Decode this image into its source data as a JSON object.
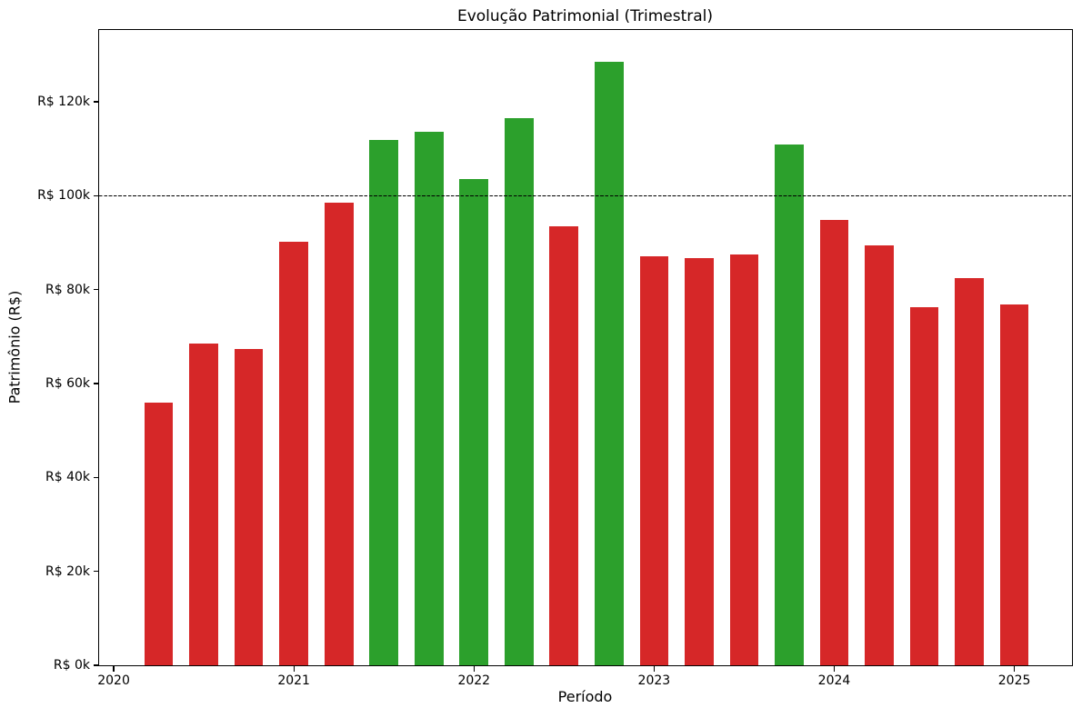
{
  "chart_data": {
    "type": "bar",
    "title": "Evolução Patrimonial (Trimestral)",
    "xlabel": "Período",
    "ylabel": "Patrimônio (R$)",
    "values_unit": "R$ thousands",
    "categories": [
      "2020Q1",
      "2020Q2",
      "2020Q3",
      "2020Q4",
      "2021Q1",
      "2021Q2",
      "2021Q3",
      "2021Q4",
      "2022Q1",
      "2022Q2",
      "2022Q3",
      "2022Q4",
      "2023Q1",
      "2023Q2",
      "2023Q3",
      "2023Q4",
      "2024Q1",
      "2024Q2",
      "2024Q3",
      "2024Q4"
    ],
    "x": [
      2020.25,
      2020.5,
      2020.75,
      2021.0,
      2021.25,
      2021.5,
      2021.75,
      2022.0,
      2022.25,
      2022.5,
      2022.75,
      2023.0,
      2023.25,
      2023.5,
      2023.75,
      2024.0,
      2024.25,
      2024.5,
      2024.75,
      2025.0
    ],
    "values": [
      55.9,
      68.5,
      67.4,
      90.2,
      98.5,
      111.9,
      113.7,
      103.6,
      116.6,
      93.5,
      128.5,
      87.2,
      86.8,
      87.5,
      110.9,
      94.9,
      89.5,
      76.3,
      82.4,
      76.9
    ],
    "bar_colors": [
      "#d62728",
      "#d62728",
      "#d62728",
      "#d62728",
      "#d62728",
      "#2ca02c",
      "#2ca02c",
      "#2ca02c",
      "#2ca02c",
      "#d62728",
      "#2ca02c",
      "#d62728",
      "#d62728",
      "#d62728",
      "#2ca02c",
      "#d62728",
      "#d62728",
      "#d62728",
      "#d62728",
      "#d62728"
    ],
    "color_rule": {
      "above_threshold": "#2ca02c",
      "below_threshold": "#d62728"
    },
    "threshold": {
      "value": 100,
      "color": "#000000",
      "style": "dashed"
    },
    "xlim": [
      2019.919,
      2025.32
    ],
    "ylim": [
      0,
      135.3
    ],
    "xticks": [
      {
        "value": 2020,
        "label": "2020"
      },
      {
        "value": 2021,
        "label": "2021"
      },
      {
        "value": 2022,
        "label": "2022"
      },
      {
        "value": 2023,
        "label": "2023"
      },
      {
        "value": 2024,
        "label": "2024"
      },
      {
        "value": 2025,
        "label": "2025"
      }
    ],
    "yticks": [
      {
        "value": 0,
        "label": "R$ 0k"
      },
      {
        "value": 20,
        "label": "R$ 20k"
      },
      {
        "value": 40,
        "label": "R$ 40k"
      },
      {
        "value": 60,
        "label": "R$ 60k"
      },
      {
        "value": 80,
        "label": "R$ 80k"
      },
      {
        "value": 100,
        "label": "R$ 100k"
      },
      {
        "value": 120,
        "label": "R$ 120k"
      }
    ],
    "grid": false,
    "legend": null,
    "bar_width_years": 0.16
  }
}
